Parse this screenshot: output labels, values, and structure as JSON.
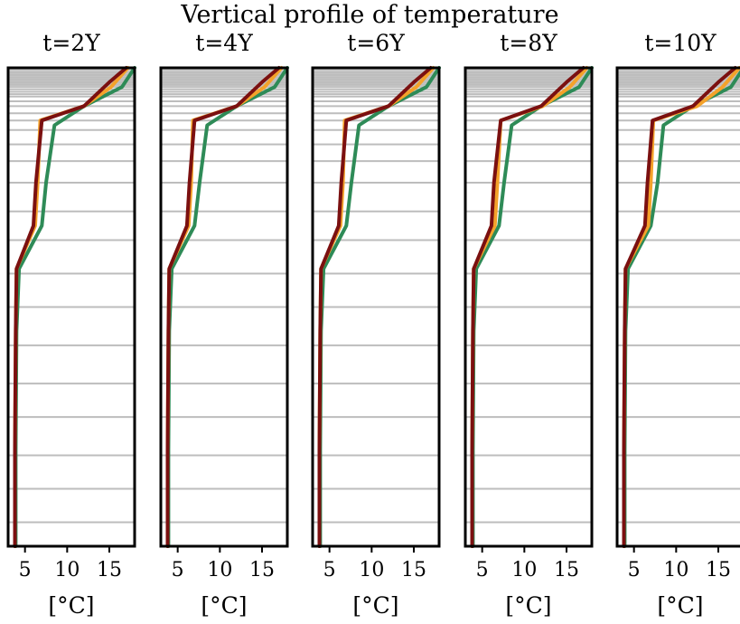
{
  "figure": {
    "title": "Vertical profile of temperature"
  },
  "chart_data": [
    {
      "type": "line",
      "title": "t=2Y",
      "xlabel": "[°C]",
      "ylabel": "",
      "xlim": [
        3,
        18
      ],
      "ylim": [
        0,
        1
      ],
      "x_ticks": [
        5,
        10,
        15
      ],
      "grid": "horizontal gray lines at model layer depths",
      "series": [
        {
          "color": "#2e8b57",
          "x": [
            18.0,
            16.5,
            12.0,
            8.5,
            7.5,
            7.0,
            4.3,
            4.0,
            3.9,
            3.9
          ],
          "y": [
            0.0,
            0.04,
            0.08,
            0.12,
            0.24,
            0.33,
            0.42,
            0.55,
            0.8,
            1.0
          ]
        },
        {
          "color": "#f4a22a",
          "x": [
            17.2,
            15.2,
            12.0,
            6.8,
            6.5,
            6.2,
            4.0,
            3.9,
            3.8,
            3.8
          ],
          "y": [
            0.0,
            0.04,
            0.08,
            0.11,
            0.24,
            0.33,
            0.42,
            0.55,
            0.8,
            1.0
          ]
        },
        {
          "color": "#7b1010",
          "x": [
            17.0,
            15.0,
            12.0,
            7.0,
            6.3,
            6.0,
            4.0,
            3.9,
            3.8,
            3.8
          ],
          "y": [
            0.0,
            0.03,
            0.08,
            0.11,
            0.24,
            0.33,
            0.42,
            0.55,
            0.8,
            1.0
          ]
        }
      ]
    },
    {
      "type": "line",
      "title": "t=4Y",
      "xlabel": "[°C]",
      "ylabel": "",
      "xlim": [
        3,
        18
      ],
      "ylim": [
        0,
        1
      ],
      "x_ticks": [
        5,
        10,
        15
      ],
      "grid": "horizontal gray lines at model layer depths",
      "series": [
        {
          "color": "#2e8b57",
          "x": [
            18.0,
            16.5,
            12.0,
            8.5,
            7.6,
            7.0,
            4.3,
            4.0,
            3.9,
            3.9
          ],
          "y": [
            0.0,
            0.04,
            0.08,
            0.12,
            0.24,
            0.33,
            0.42,
            0.55,
            0.8,
            1.0
          ]
        },
        {
          "color": "#f4a22a",
          "x": [
            17.3,
            15.3,
            12.0,
            6.8,
            6.6,
            6.3,
            4.0,
            3.9,
            3.8,
            3.8
          ],
          "y": [
            0.0,
            0.04,
            0.08,
            0.11,
            0.24,
            0.33,
            0.42,
            0.55,
            0.8,
            1.0
          ]
        },
        {
          "color": "#7b1010",
          "x": [
            17.0,
            15.0,
            12.0,
            7.0,
            6.4,
            6.1,
            4.0,
            3.9,
            3.8,
            3.8
          ],
          "y": [
            0.0,
            0.03,
            0.08,
            0.11,
            0.24,
            0.33,
            0.42,
            0.55,
            0.8,
            1.0
          ]
        }
      ]
    },
    {
      "type": "line",
      "title": "t=6Y",
      "xlabel": "[°C]",
      "ylabel": "",
      "xlim": [
        3,
        18
      ],
      "ylim": [
        0,
        1
      ],
      "x_ticks": [
        5,
        10,
        15
      ],
      "grid": "horizontal gray lines at model layer depths",
      "series": [
        {
          "color": "#2e8b57",
          "x": [
            18.0,
            16.5,
            12.0,
            8.5,
            7.6,
            7.0,
            4.3,
            4.0,
            3.9,
            3.9
          ],
          "y": [
            0.0,
            0.04,
            0.08,
            0.12,
            0.24,
            0.33,
            0.42,
            0.55,
            0.8,
            1.0
          ]
        },
        {
          "color": "#f4a22a",
          "x": [
            17.3,
            15.3,
            12.0,
            6.8,
            6.6,
            6.3,
            4.0,
            3.9,
            3.8,
            3.8
          ],
          "y": [
            0.0,
            0.04,
            0.08,
            0.11,
            0.24,
            0.33,
            0.42,
            0.55,
            0.8,
            1.0
          ]
        },
        {
          "color": "#7b1010",
          "x": [
            17.0,
            15.0,
            12.0,
            7.0,
            6.4,
            6.1,
            4.0,
            3.9,
            3.8,
            3.8
          ],
          "y": [
            0.0,
            0.03,
            0.08,
            0.11,
            0.24,
            0.33,
            0.42,
            0.55,
            0.8,
            1.0
          ]
        }
      ]
    },
    {
      "type": "line",
      "title": "t=8Y",
      "xlabel": "[°C]",
      "ylabel": "",
      "xlim": [
        3,
        18
      ],
      "ylim": [
        0,
        1
      ],
      "x_ticks": [
        5,
        10,
        15
      ],
      "grid": "horizontal gray lines at model layer depths",
      "series": [
        {
          "color": "#2e8b57",
          "x": [
            18.0,
            16.5,
            12.0,
            8.5,
            7.6,
            7.0,
            4.3,
            4.0,
            3.9,
            3.9
          ],
          "y": [
            0.0,
            0.04,
            0.08,
            0.12,
            0.24,
            0.33,
            0.42,
            0.55,
            0.8,
            1.0
          ]
        },
        {
          "color": "#f4a22a",
          "x": [
            17.4,
            15.4,
            12.2,
            7.2,
            6.8,
            6.5,
            4.0,
            3.9,
            3.8,
            3.8
          ],
          "y": [
            0.0,
            0.04,
            0.08,
            0.11,
            0.24,
            0.33,
            0.42,
            0.55,
            0.8,
            1.0
          ]
        },
        {
          "color": "#7b1010",
          "x": [
            17.0,
            15.0,
            12.0,
            7.2,
            6.4,
            6.1,
            4.0,
            3.9,
            3.8,
            3.8
          ],
          "y": [
            0.0,
            0.03,
            0.08,
            0.11,
            0.24,
            0.33,
            0.42,
            0.55,
            0.8,
            1.0
          ]
        }
      ]
    },
    {
      "type": "line",
      "title": "t=10Y",
      "xlabel": "[°C]",
      "ylabel": "",
      "xlim": [
        3,
        18
      ],
      "ylim": [
        0,
        1
      ],
      "x_ticks": [
        5,
        10,
        15
      ],
      "grid": "horizontal gray lines at model layer depths",
      "series": [
        {
          "color": "#2e8b57",
          "x": [
            18.0,
            16.5,
            12.0,
            8.5,
            7.8,
            7.0,
            4.3,
            4.0,
            3.9,
            3.9
          ],
          "y": [
            0.0,
            0.04,
            0.08,
            0.12,
            0.24,
            0.33,
            0.42,
            0.55,
            0.8,
            1.0
          ]
        },
        {
          "color": "#f4a22a",
          "x": [
            17.5,
            15.5,
            12.5,
            7.3,
            7.0,
            6.7,
            4.0,
            3.9,
            3.8,
            3.8
          ],
          "y": [
            0.0,
            0.04,
            0.08,
            0.11,
            0.24,
            0.33,
            0.42,
            0.55,
            0.8,
            1.0
          ]
        },
        {
          "color": "#7b1010",
          "x": [
            17.0,
            15.0,
            12.0,
            7.2,
            6.6,
            6.3,
            4.0,
            3.9,
            3.8,
            3.8
          ],
          "y": [
            0.0,
            0.03,
            0.08,
            0.11,
            0.24,
            0.33,
            0.42,
            0.55,
            0.8,
            1.0
          ]
        }
      ]
    }
  ]
}
